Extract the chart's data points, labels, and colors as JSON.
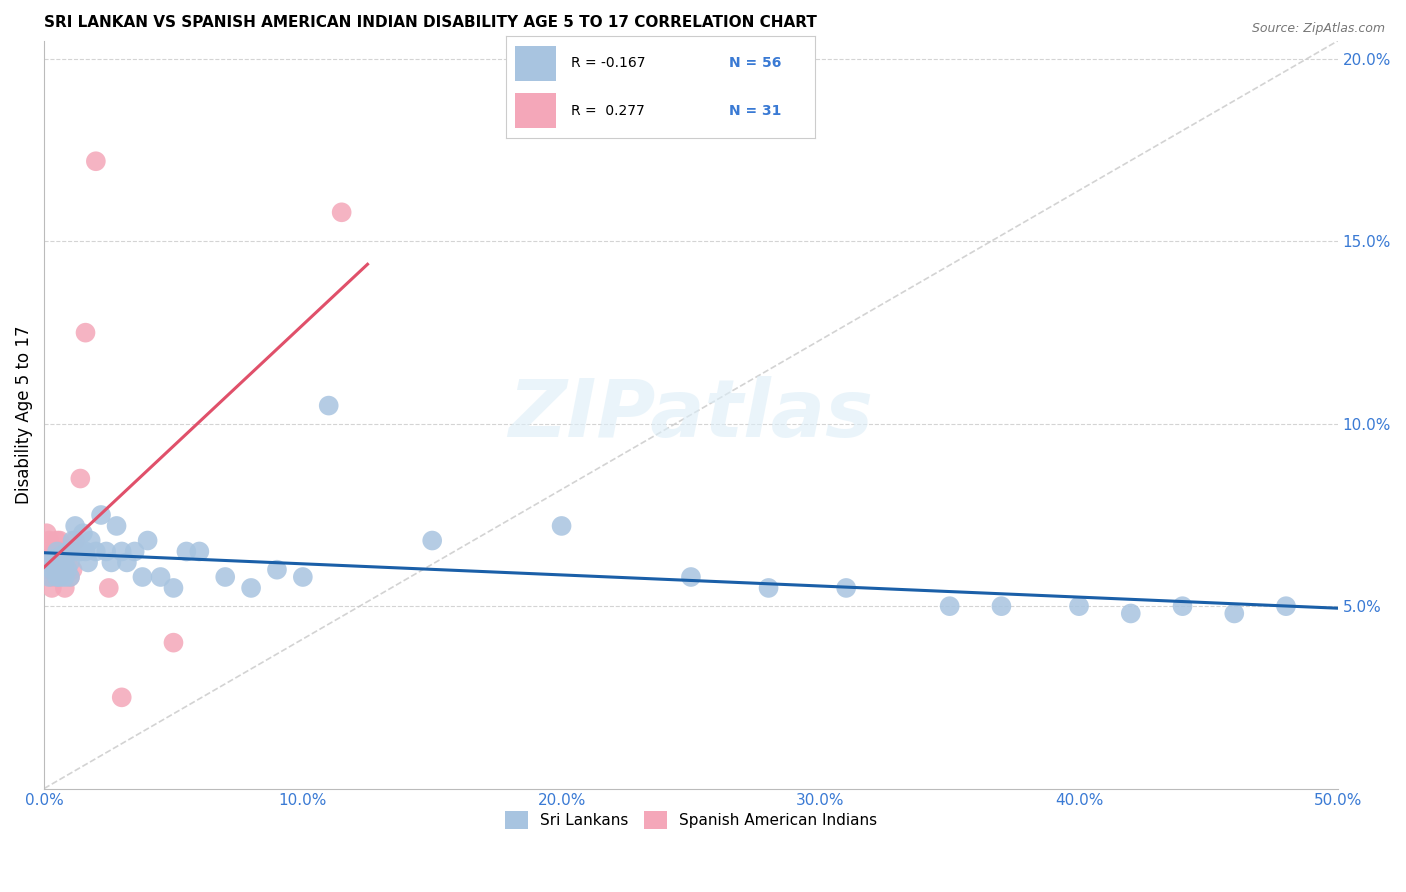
{
  "title": "SRI LANKAN VS SPANISH AMERICAN INDIAN DISABILITY AGE 5 TO 17 CORRELATION CHART",
  "source": "Source: ZipAtlas.com",
  "ylabel": "Disability Age 5 to 17",
  "xlim": [
    0.0,
    0.5
  ],
  "ylim": [
    0.0,
    0.205
  ],
  "xticks": [
    0.0,
    0.1,
    0.2,
    0.3,
    0.4,
    0.5
  ],
  "yticks": [
    0.05,
    0.1,
    0.15,
    0.2
  ],
  "xticklabels": [
    "0.0%",
    "10.0%",
    "20.0%",
    "30.0%",
    "40.0%",
    "50.0%"
  ],
  "yticklabels_right": [
    "5.0%",
    "10.0%",
    "15.0%",
    "20.0%"
  ],
  "sri_lankan_color": "#a8c4e0",
  "spanish_color": "#f4a7b9",
  "sri_lankan_line_color": "#1a5fa8",
  "spanish_line_color": "#e0506a",
  "legend_sri_r": "-0.167",
  "legend_sri_n": "56",
  "legend_spa_r": "0.277",
  "legend_spa_n": "31",
  "sri_lankans_x": [
    0.001,
    0.002,
    0.003,
    0.004,
    0.005,
    0.005,
    0.005,
    0.006,
    0.006,
    0.007,
    0.007,
    0.008,
    0.008,
    0.009,
    0.009,
    0.01,
    0.01,
    0.011,
    0.012,
    0.013,
    0.014,
    0.015,
    0.016,
    0.017,
    0.018,
    0.02,
    0.022,
    0.024,
    0.026,
    0.028,
    0.03,
    0.032,
    0.035,
    0.038,
    0.04,
    0.045,
    0.05,
    0.055,
    0.06,
    0.07,
    0.08,
    0.09,
    0.1,
    0.11,
    0.15,
    0.2,
    0.25,
    0.28,
    0.31,
    0.35,
    0.37,
    0.4,
    0.42,
    0.44,
    0.46,
    0.48
  ],
  "sri_lankans_y": [
    0.062,
    0.058,
    0.06,
    0.063,
    0.065,
    0.06,
    0.058,
    0.062,
    0.058,
    0.06,
    0.064,
    0.062,
    0.058,
    0.065,
    0.06,
    0.062,
    0.058,
    0.068,
    0.072,
    0.065,
    0.065,
    0.07,
    0.065,
    0.062,
    0.068,
    0.065,
    0.075,
    0.065,
    0.062,
    0.072,
    0.065,
    0.062,
    0.065,
    0.058,
    0.068,
    0.058,
    0.055,
    0.065,
    0.065,
    0.058,
    0.055,
    0.06,
    0.058,
    0.105,
    0.068,
    0.072,
    0.058,
    0.055,
    0.055,
    0.05,
    0.05,
    0.05,
    0.048,
    0.05,
    0.048,
    0.05
  ],
  "spanish_x": [
    0.001,
    0.001,
    0.002,
    0.002,
    0.003,
    0.003,
    0.003,
    0.004,
    0.004,
    0.005,
    0.005,
    0.005,
    0.006,
    0.006,
    0.006,
    0.007,
    0.007,
    0.008,
    0.008,
    0.009,
    0.01,
    0.01,
    0.011,
    0.012,
    0.014,
    0.016,
    0.02,
    0.025,
    0.03,
    0.05,
    0.115
  ],
  "spanish_y": [
    0.065,
    0.07,
    0.06,
    0.068,
    0.055,
    0.058,
    0.062,
    0.06,
    0.065,
    0.062,
    0.068,
    0.058,
    0.062,
    0.068,
    0.058,
    0.065,
    0.06,
    0.062,
    0.055,
    0.06,
    0.058,
    0.065,
    0.06,
    0.068,
    0.085,
    0.125,
    0.172,
    0.055,
    0.025,
    0.04,
    0.158
  ],
  "sp_line_x_start": 0.0,
  "sp_line_x_end": 0.125,
  "sp_line_y_start": 0.058,
  "sp_line_y_end": 0.125
}
